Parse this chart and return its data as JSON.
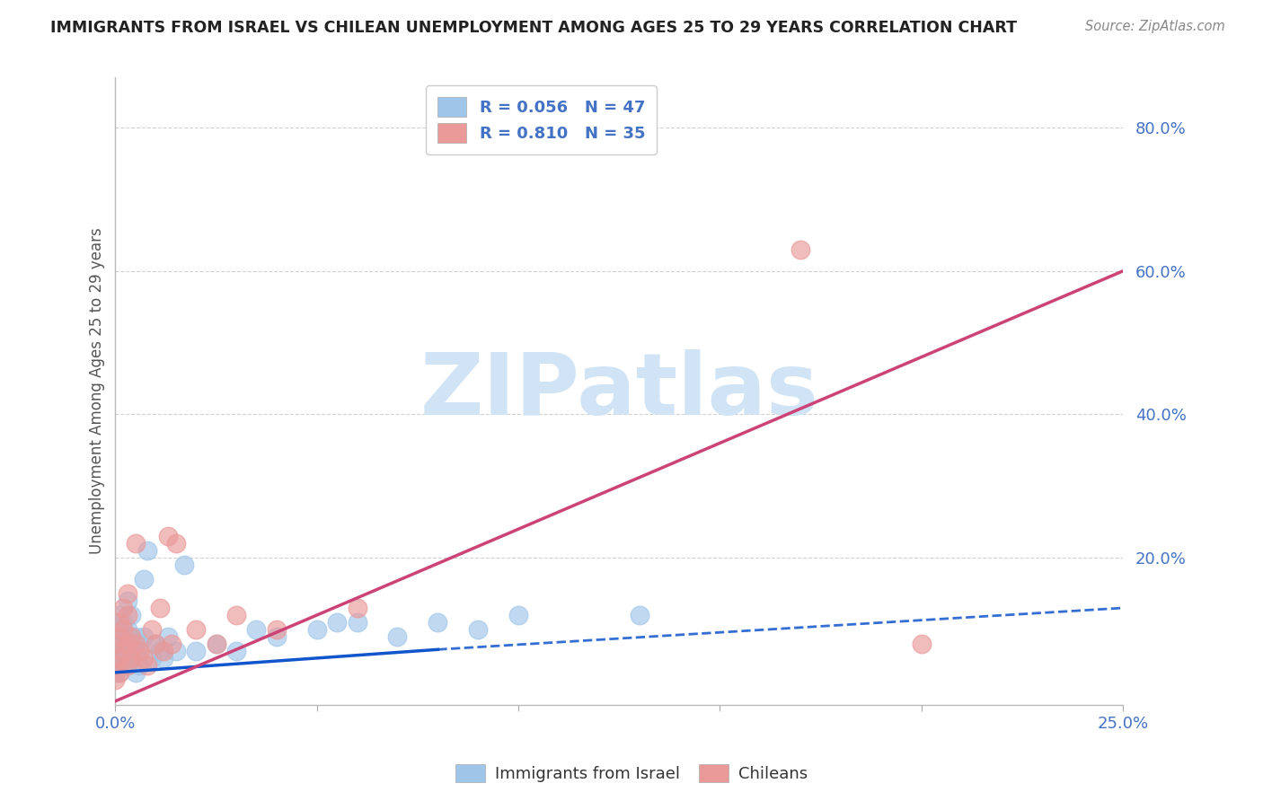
{
  "title": "IMMIGRANTS FROM ISRAEL VS CHILEAN UNEMPLOYMENT AMONG AGES 25 TO 29 YEARS CORRELATION CHART",
  "source": "Source: ZipAtlas.com",
  "ylabel": "Unemployment Among Ages 25 to 29 years",
  "israel_color": "#9fc5e8",
  "chilean_color": "#ea9999",
  "israel_line_color": "#1155cc",
  "chilean_line_color": "#cc4477",
  "israel_R": "0.056",
  "israel_N": "47",
  "chilean_R": "0.810",
  "chilean_N": "35",
  "xlim": [
    0.0,
    0.25
  ],
  "ylim": [
    -0.005,
    0.87
  ],
  "background_color": "#ffffff",
  "grid_color": "#cccccc",
  "tick_color": "#4472c4",
  "watermark_text": "ZIPatlas",
  "watermark_color": "#d0e4f5",
  "israel_line_x": [
    0.0,
    0.08,
    0.25
  ],
  "israel_line_y_start": 0.04,
  "israel_line_y_mid": 0.072,
  "israel_line_y_end": 0.13,
  "chilean_line_x0": 0.0,
  "chilean_line_y0": 0.0,
  "chilean_line_x1": 0.25,
  "chilean_line_y1": 0.6,
  "scatter_israel_x": [
    0.0,
    0.0,
    0.0,
    0.001,
    0.001,
    0.001,
    0.001,
    0.001,
    0.002,
    0.002,
    0.002,
    0.002,
    0.003,
    0.003,
    0.003,
    0.003,
    0.004,
    0.004,
    0.004,
    0.005,
    0.005,
    0.005,
    0.006,
    0.006,
    0.007,
    0.007,
    0.008,
    0.009,
    0.01,
    0.011,
    0.012,
    0.013,
    0.015,
    0.017,
    0.02,
    0.025,
    0.03,
    0.035,
    0.04,
    0.05,
    0.055,
    0.06,
    0.07,
    0.08,
    0.09,
    0.1,
    0.13
  ],
  "scatter_israel_y": [
    0.06,
    0.04,
    0.08,
    0.05,
    0.07,
    0.1,
    0.12,
    0.04,
    0.06,
    0.09,
    0.11,
    0.07,
    0.05,
    0.08,
    0.1,
    0.14,
    0.06,
    0.09,
    0.12,
    0.07,
    0.09,
    0.04,
    0.08,
    0.05,
    0.09,
    0.17,
    0.21,
    0.06,
    0.08,
    0.07,
    0.06,
    0.09,
    0.07,
    0.19,
    0.07,
    0.08,
    0.07,
    0.1,
    0.09,
    0.1,
    0.11,
    0.11,
    0.09,
    0.11,
    0.1,
    0.12,
    0.12
  ],
  "scatter_chilean_x": [
    0.0,
    0.0,
    0.0,
    0.001,
    0.001,
    0.001,
    0.001,
    0.002,
    0.002,
    0.002,
    0.003,
    0.003,
    0.003,
    0.003,
    0.004,
    0.004,
    0.005,
    0.005,
    0.006,
    0.007,
    0.008,
    0.009,
    0.01,
    0.011,
    0.012,
    0.013,
    0.014,
    0.015,
    0.02,
    0.025,
    0.03,
    0.04,
    0.06,
    0.17,
    0.2
  ],
  "scatter_chilean_y": [
    0.05,
    0.08,
    0.03,
    0.06,
    0.09,
    0.11,
    0.04,
    0.07,
    0.1,
    0.13,
    0.05,
    0.08,
    0.12,
    0.15,
    0.06,
    0.09,
    0.08,
    0.22,
    0.07,
    0.06,
    0.05,
    0.1,
    0.08,
    0.13,
    0.07,
    0.23,
    0.08,
    0.22,
    0.1,
    0.08,
    0.12,
    0.1,
    0.13,
    0.63,
    0.08
  ]
}
